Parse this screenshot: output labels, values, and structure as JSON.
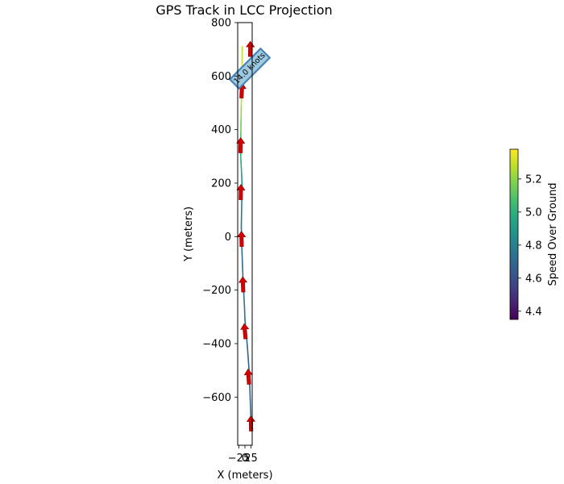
{
  "chart_data": {
    "type": "line",
    "title": "GPS Track in LCC Projection",
    "xlabel": "X (meters)",
    "ylabel": "Y (meters)",
    "xlim": [
      -30,
      30
    ],
    "ylim": [
      -780,
      800
    ],
    "x_ticks": [
      -25,
      0,
      25
    ],
    "x_tick_labels": [
      "−25",
      "0",
      "25"
    ],
    "y_ticks": [
      800,
      600,
      400,
      200,
      0,
      -200,
      -400,
      -600
    ],
    "y_tick_labels": [
      "800",
      "600",
      "400",
      "200",
      "0",
      "−200",
      "−400",
      "−600"
    ],
    "grid": false,
    "track": {
      "x": [
        25,
        24,
        22,
        20,
        18,
        14,
        10,
        5,
        0,
        -2,
        -5,
        -8,
        -10,
        -12,
        -14,
        -15,
        -14,
        -13,
        -12,
        -14,
        -17,
        -18,
        -17,
        -16,
        -15,
        -14,
        -13,
        -13,
        -12,
        -11
      ],
      "y": [
        -710,
        -660,
        -610,
        -560,
        -510,
        -460,
        -410,
        -360,
        -310,
        -260,
        -210,
        -160,
        -110,
        -60,
        -10,
        40,
        90,
        140,
        190,
        240,
        290,
        340,
        390,
        440,
        490,
        540,
        560,
        600,
        650,
        710
      ],
      "speed": [
        4.72,
        4.7,
        4.68,
        4.66,
        4.64,
        4.66,
        4.68,
        4.7,
        4.74,
        4.76,
        4.76,
        4.74,
        4.72,
        4.7,
        4.72,
        4.75,
        4.78,
        4.8,
        4.86,
        4.94,
        5.0,
        5.06,
        5.12,
        5.18,
        5.25,
        5.3,
        5.36,
        5.35,
        5.3,
        5.25
      ]
    },
    "heading_arrows": {
      "x": [
        25,
        15,
        0,
        -8,
        -14,
        -17,
        -18,
        -13,
        22
      ],
      "y": [
        -700,
        -525,
        -355,
        -180,
        -10,
        165,
        340,
        545,
        700
      ],
      "color": "#d40000"
    },
    "annotation": {
      "text": "14.0 knots",
      "x": 25,
      "y": 620,
      "box_fill": "#9ecae1",
      "box_edge": "#4682b4",
      "arrow_color": "#4682b4"
    },
    "colorbar": {
      "label": "Speed Over Ground",
      "vmin": 4.35,
      "vmax": 5.38,
      "ticks": [
        4.4,
        4.6,
        4.8,
        5.0,
        5.2
      ],
      "tick_labels": [
        "4.4",
        "4.6",
        "4.8",
        "5.0",
        "5.2"
      ],
      "colormap": "viridis"
    }
  }
}
